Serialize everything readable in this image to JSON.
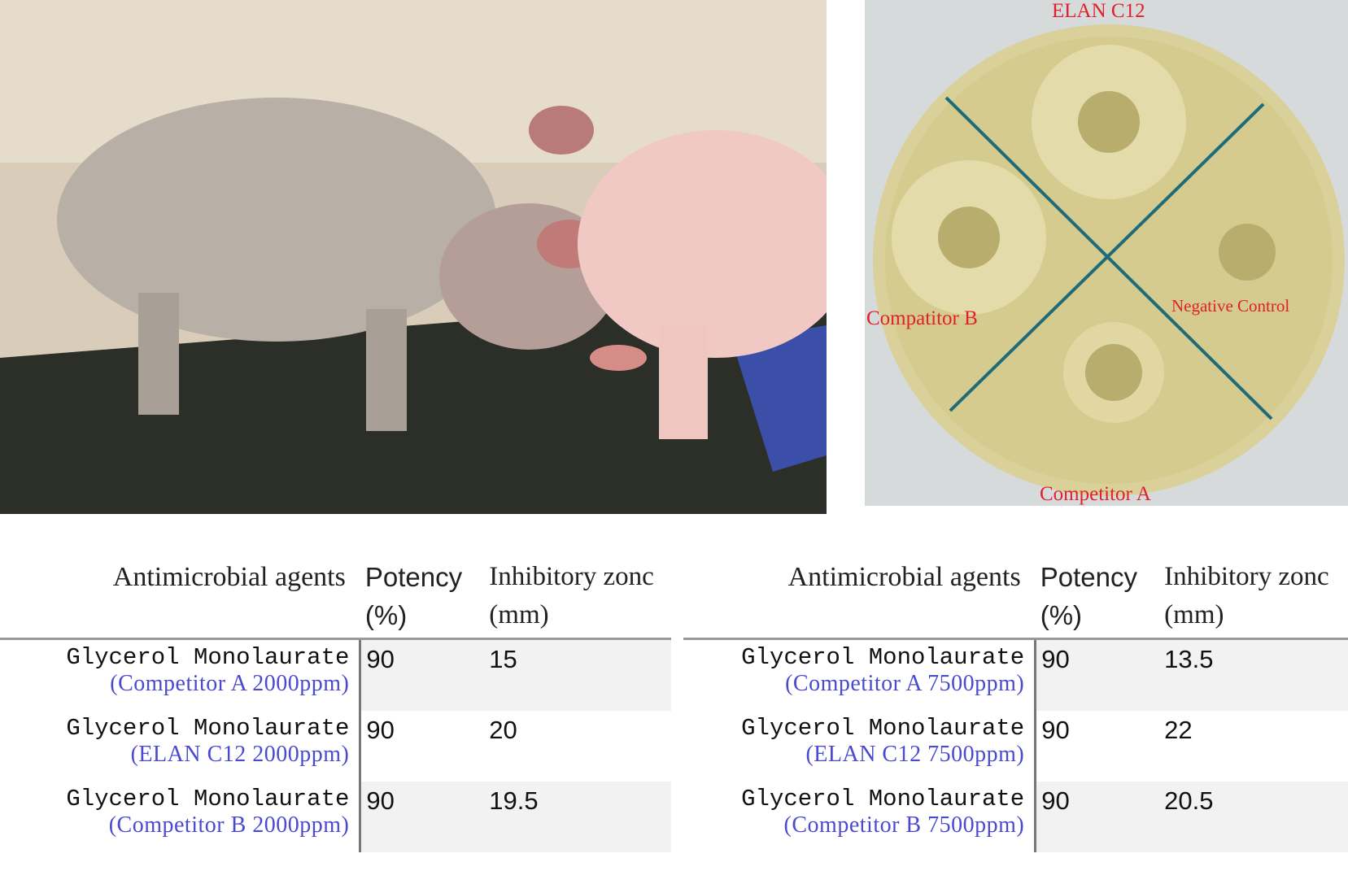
{
  "plate_labels": {
    "top": "ELAN C12",
    "bottom": "Competitor A",
    "left": "Compatitor B",
    "right": "Negative Control"
  },
  "tables": [
    {
      "header": [
        "Antimicrobial agents",
        "Potency (%)",
        "Inhibitory zonc (mm)"
      ],
      "rows": [
        {
          "agent": "Glycerol Monolaurate",
          "product": "(Competitor A 2000ppm)",
          "potency": 90,
          "zone": 15
        },
        {
          "agent": "Glycerol Monolaurate",
          "product": "(ELAN C12 2000ppm)",
          "potency": 90,
          "zone": 20
        },
        {
          "agent": "Glycerol Monolaurate",
          "product": "(Competitor B 2000ppm)",
          "potency": 90,
          "zone": 19.5
        }
      ]
    },
    {
      "header": [
        "Antimicrobial agents",
        "Potency (%)",
        "Inhibitory zonc (mm)"
      ],
      "rows": [
        {
          "agent": "Glycerol Monolaurate",
          "product": "(Competitor A 7500ppm)",
          "potency": 90,
          "zone": 13.5
        },
        {
          "agent": "Glycerol Monolaurate",
          "product": "(ELAN C12 7500ppm)",
          "potency": 90,
          "zone": 22
        },
        {
          "agent": "Glycerol Monolaurate",
          "product": "(Competitor B 7500ppm)",
          "potency": 90,
          "zone": 20.5
        }
      ]
    }
  ]
}
